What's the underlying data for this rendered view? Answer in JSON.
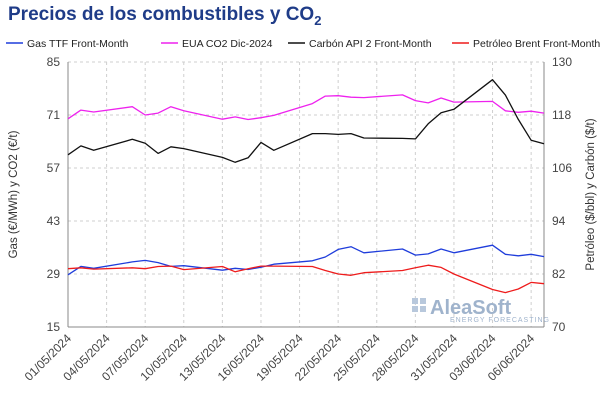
{
  "title": {
    "main": "Precios de los combustibles y CO",
    "sub": "2"
  },
  "watermark": {
    "name": "AleaSoft",
    "tagline": "ENERGY FORECASTING"
  },
  "chart_data": {
    "type": "line",
    "title": "Precios de los combustibles y CO2",
    "ylabel_left": "Gas (€/MWh) y CO2 (€/t)",
    "ylabel_right": "Petróleo ($/bbl) y Carbón ($/t)",
    "ylim_left": [
      15,
      85
    ],
    "ylim_right": [
      70,
      130
    ],
    "yticks_left": [
      "15",
      "29",
      "43",
      "57",
      "71",
      "85"
    ],
    "yticks_right": [
      "70",
      "82",
      "94",
      "106",
      "118",
      "130"
    ],
    "x_tick_labels": [
      "01/05/2024",
      "04/05/2024",
      "07/05/2024",
      "10/05/2024",
      "13/05/2024",
      "16/05/2024",
      "19/05/2024",
      "22/05/2024",
      "25/05/2024",
      "28/05/2024",
      "31/05/2024",
      "03/06/2024",
      "06/06/2024"
    ],
    "x": [
      "01/05/2024",
      "02/05/2024",
      "03/05/2024",
      "06/05/2024",
      "07/05/2024",
      "08/05/2024",
      "09/05/2024",
      "10/05/2024",
      "13/05/2024",
      "14/05/2024",
      "15/05/2024",
      "16/05/2024",
      "17/05/2024",
      "20/05/2024",
      "21/05/2024",
      "22/05/2024",
      "23/05/2024",
      "24/05/2024",
      "27/05/2024",
      "28/05/2024",
      "29/05/2024",
      "30/05/2024",
      "31/05/2024",
      "03/06/2024",
      "04/06/2024",
      "05/06/2024",
      "06/06/2024",
      "07/06/2024"
    ],
    "grid": true,
    "legend_position": "top",
    "series": [
      {
        "name": "Gas TTF Front-Month",
        "axis": "left",
        "color": "#1f3ddb",
        "values": [
          28.8,
          31.0,
          30.5,
          32.2,
          32.6,
          32.0,
          31.0,
          31.2,
          30.0,
          30.5,
          30.2,
          30.8,
          31.6,
          32.5,
          33.5,
          35.5,
          36.2,
          34.6,
          35.6,
          34.0,
          34.3,
          35.6,
          34.6,
          36.6,
          34.2,
          33.8,
          34.2,
          33.6
        ]
      },
      {
        "name": "EUA CO2 Dic-2024",
        "axis": "left",
        "color": "#ee22ee",
        "values": [
          70.0,
          72.3,
          71.8,
          73.2,
          71.0,
          71.5,
          73.2,
          72.1,
          69.9,
          70.5,
          69.8,
          70.3,
          70.9,
          74.0,
          76.0,
          76.1,
          75.7,
          75.6,
          76.3,
          74.8,
          74.2,
          75.5,
          74.4,
          74.6,
          72.1,
          71.7,
          72.0,
          71.5
        ]
      },
      {
        "name": "Carbón API 2 Front-Month",
        "axis": "right",
        "color": "#111111",
        "values": [
          109.0,
          111.0,
          110.0,
          112.5,
          111.6,
          109.3,
          110.8,
          110.4,
          108.4,
          107.3,
          108.3,
          111.8,
          110.0,
          113.8,
          113.8,
          113.6,
          113.8,
          112.8,
          112.7,
          112.6,
          116.0,
          118.5,
          119.3,
          126.0,
          122.5,
          117.0,
          112.3,
          111.5
        ]
      },
      {
        "name": "Petróleo Brent Front-Month",
        "axis": "right",
        "color": "#ee1c1c",
        "values": [
          83.2,
          83.4,
          83.1,
          83.4,
          83.2,
          83.7,
          83.8,
          83.0,
          83.7,
          82.5,
          83.2,
          83.8,
          83.8,
          83.7,
          82.8,
          82.0,
          81.7,
          82.3,
          82.8,
          83.4,
          84.0,
          83.5,
          82.0,
          78.5,
          77.8,
          78.6,
          80.1,
          79.8
        ]
      }
    ]
  }
}
